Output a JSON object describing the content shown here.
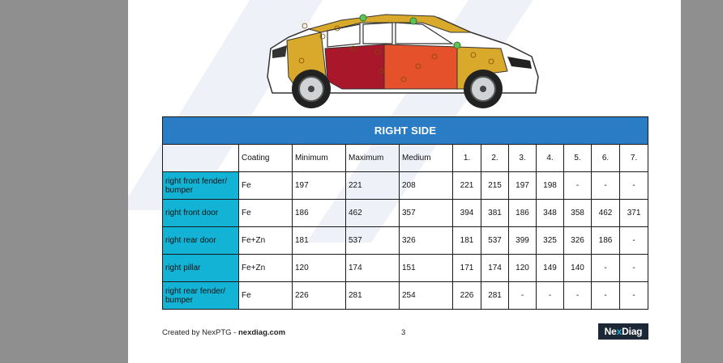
{
  "table": {
    "title": "RIGHT SIDE",
    "columns": [
      "",
      "Coating",
      "Minimum",
      "Maximum",
      "Medium",
      "1.",
      "2.",
      "3.",
      "4.",
      "5.",
      "6.",
      "7."
    ],
    "rows": [
      {
        "label": "right front fender/ bumper",
        "cells": [
          "Fe",
          "197",
          "221",
          "208",
          "221",
          "215",
          "197",
          "198",
          "-",
          "-",
          "-"
        ]
      },
      {
        "label": "right front door",
        "cells": [
          "Fe",
          "186",
          "462",
          "357",
          "394",
          "381",
          "186",
          "348",
          "358",
          "462",
          "371"
        ]
      },
      {
        "label": "right rear door",
        "cells": [
          "Fe+Zn",
          "181",
          "537",
          "326",
          "181",
          "537",
          "399",
          "325",
          "326",
          "186",
          "-"
        ]
      },
      {
        "label": "right pillar",
        "cells": [
          "Fe+Zn",
          "120",
          "174",
          "151",
          "171",
          "174",
          "120",
          "149",
          "140",
          "-",
          "-"
        ]
      },
      {
        "label": "right rear fender/ bumper",
        "cells": [
          "Fe",
          "226",
          "281",
          "254",
          "226",
          "281",
          "-",
          "-",
          "-",
          "-",
          "-"
        ]
      }
    ]
  },
  "footer": {
    "created_by": "Created by NexPTG - ",
    "site": "nexdiag.com",
    "page_number": "3"
  },
  "logo": {
    "part1": "Ne",
    "part2": "x",
    "part3": "Diag"
  },
  "colors": {
    "header_blue": "#2a7cc4",
    "label_cyan": "#13b3d5",
    "yellow_panel": "#d9a92b",
    "red_panel": "#a8182a",
    "orange_panel": "#e5512a",
    "green_marker": "#5fc15a"
  }
}
